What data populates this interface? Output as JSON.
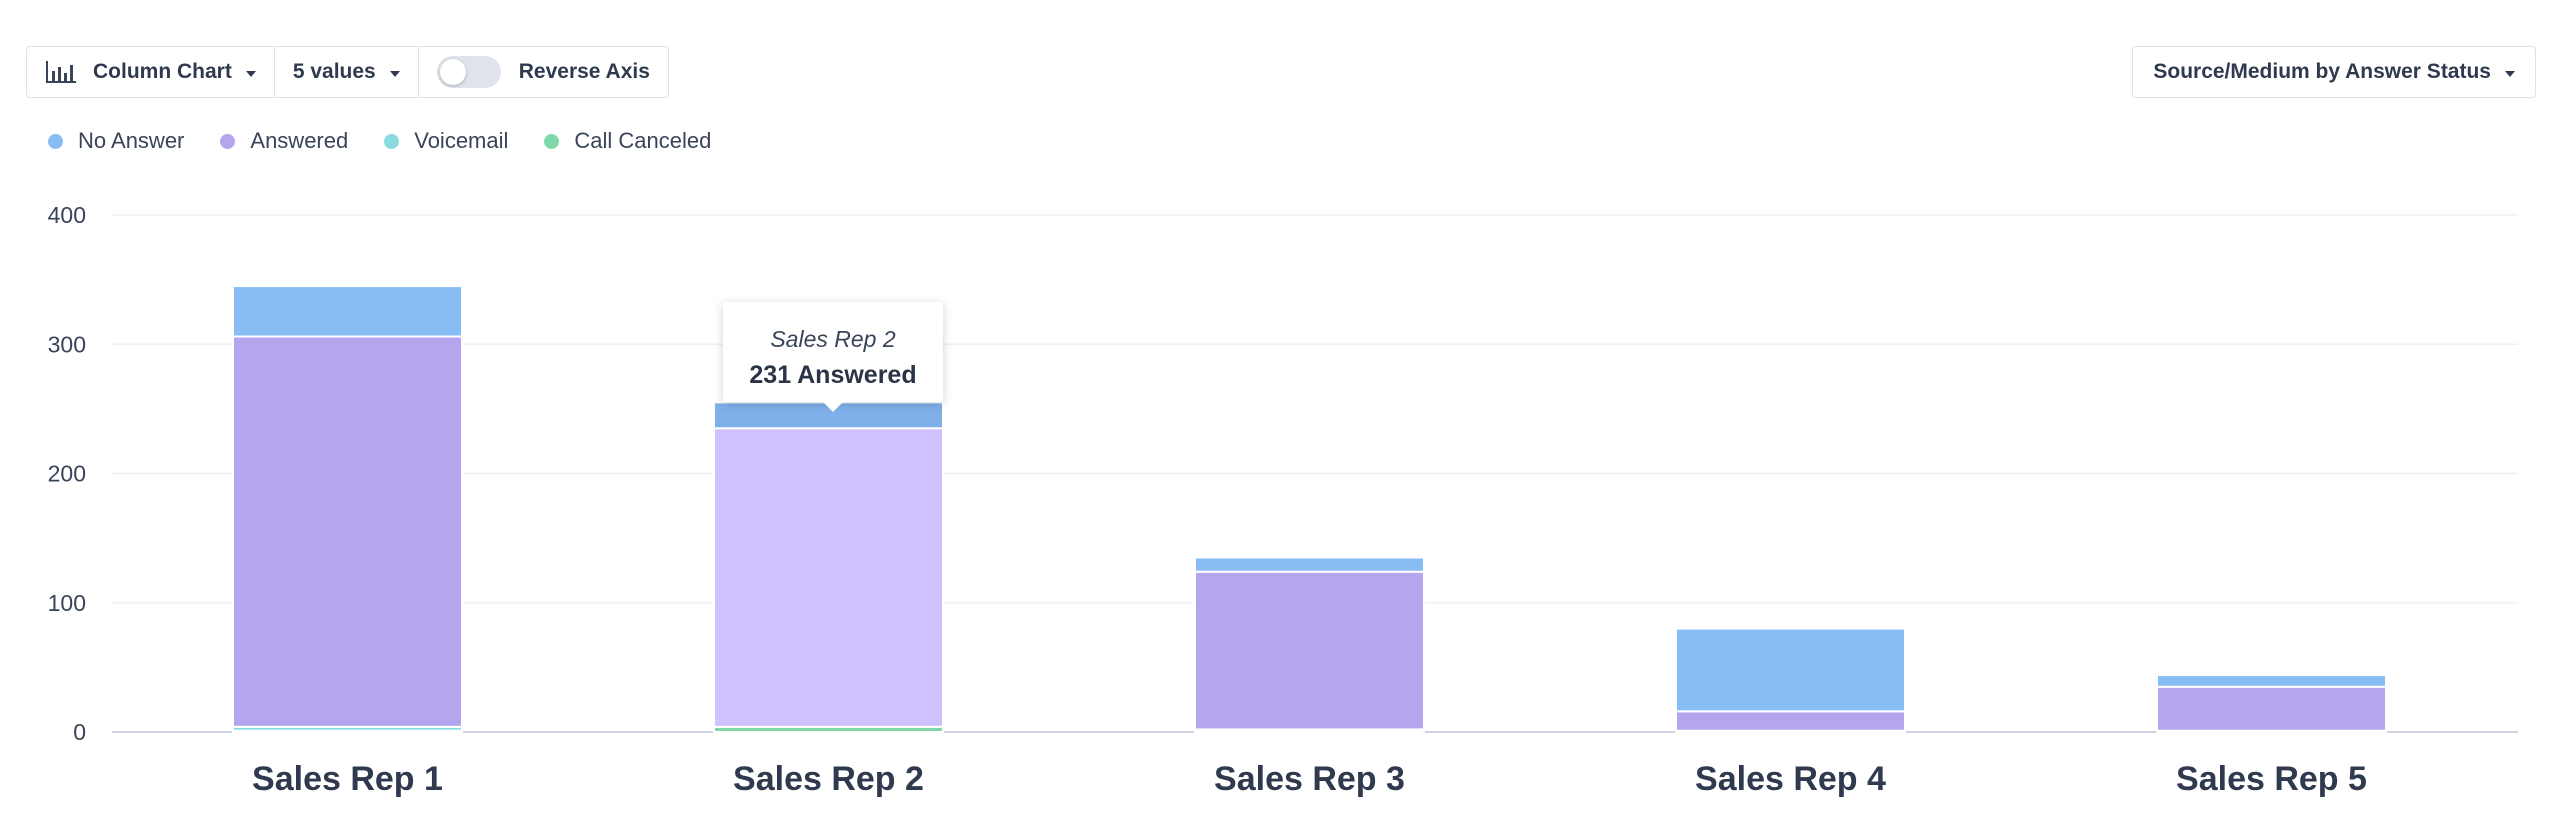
{
  "toolbar": {
    "chart_type_label": "Column Chart",
    "values_label": "5 values",
    "reverse_axis_label": "Reverse Axis",
    "reverse_axis_on": false,
    "breakdown_label": "Source/Medium by Answer Status"
  },
  "tooltip": {
    "title": "Sales Rep 2",
    "value": "231 Answered"
  },
  "chart_data": {
    "type": "bar",
    "stacked": true,
    "categories": [
      "Sales Rep 1",
      "Sales Rep 2",
      "Sales Rep 3",
      "Sales Rep 4",
      "Sales Rep 5"
    ],
    "series": [
      {
        "name": "Call Canceled",
        "color": "#7dd9a8",
        "values": [
          1,
          4,
          1,
          0,
          0
        ]
      },
      {
        "name": "Voicemail",
        "color": "#8adbe0",
        "values": [
          3,
          0,
          1,
          1,
          1
        ]
      },
      {
        "name": "Answered",
        "color": "#b4a5ec",
        "hover_color": "#cfc1ff",
        "values": [
          302,
          231,
          122,
          15,
          34
        ]
      },
      {
        "name": "No Answer",
        "color": "#87bcf4",
        "hover_color": "#7fb0ea",
        "values": [
          39,
          20,
          11,
          64,
          9
        ]
      }
    ],
    "legend_order": [
      "No Answer",
      "Answered",
      "Voicemail",
      "Call Canceled"
    ],
    "ylim": [
      0,
      400
    ],
    "yticks": [
      0,
      100,
      200,
      300,
      400
    ],
    "grid": true,
    "legend_position": "top-left",
    "highlighted": {
      "category": "Sales Rep 2",
      "series": "Answered"
    }
  }
}
